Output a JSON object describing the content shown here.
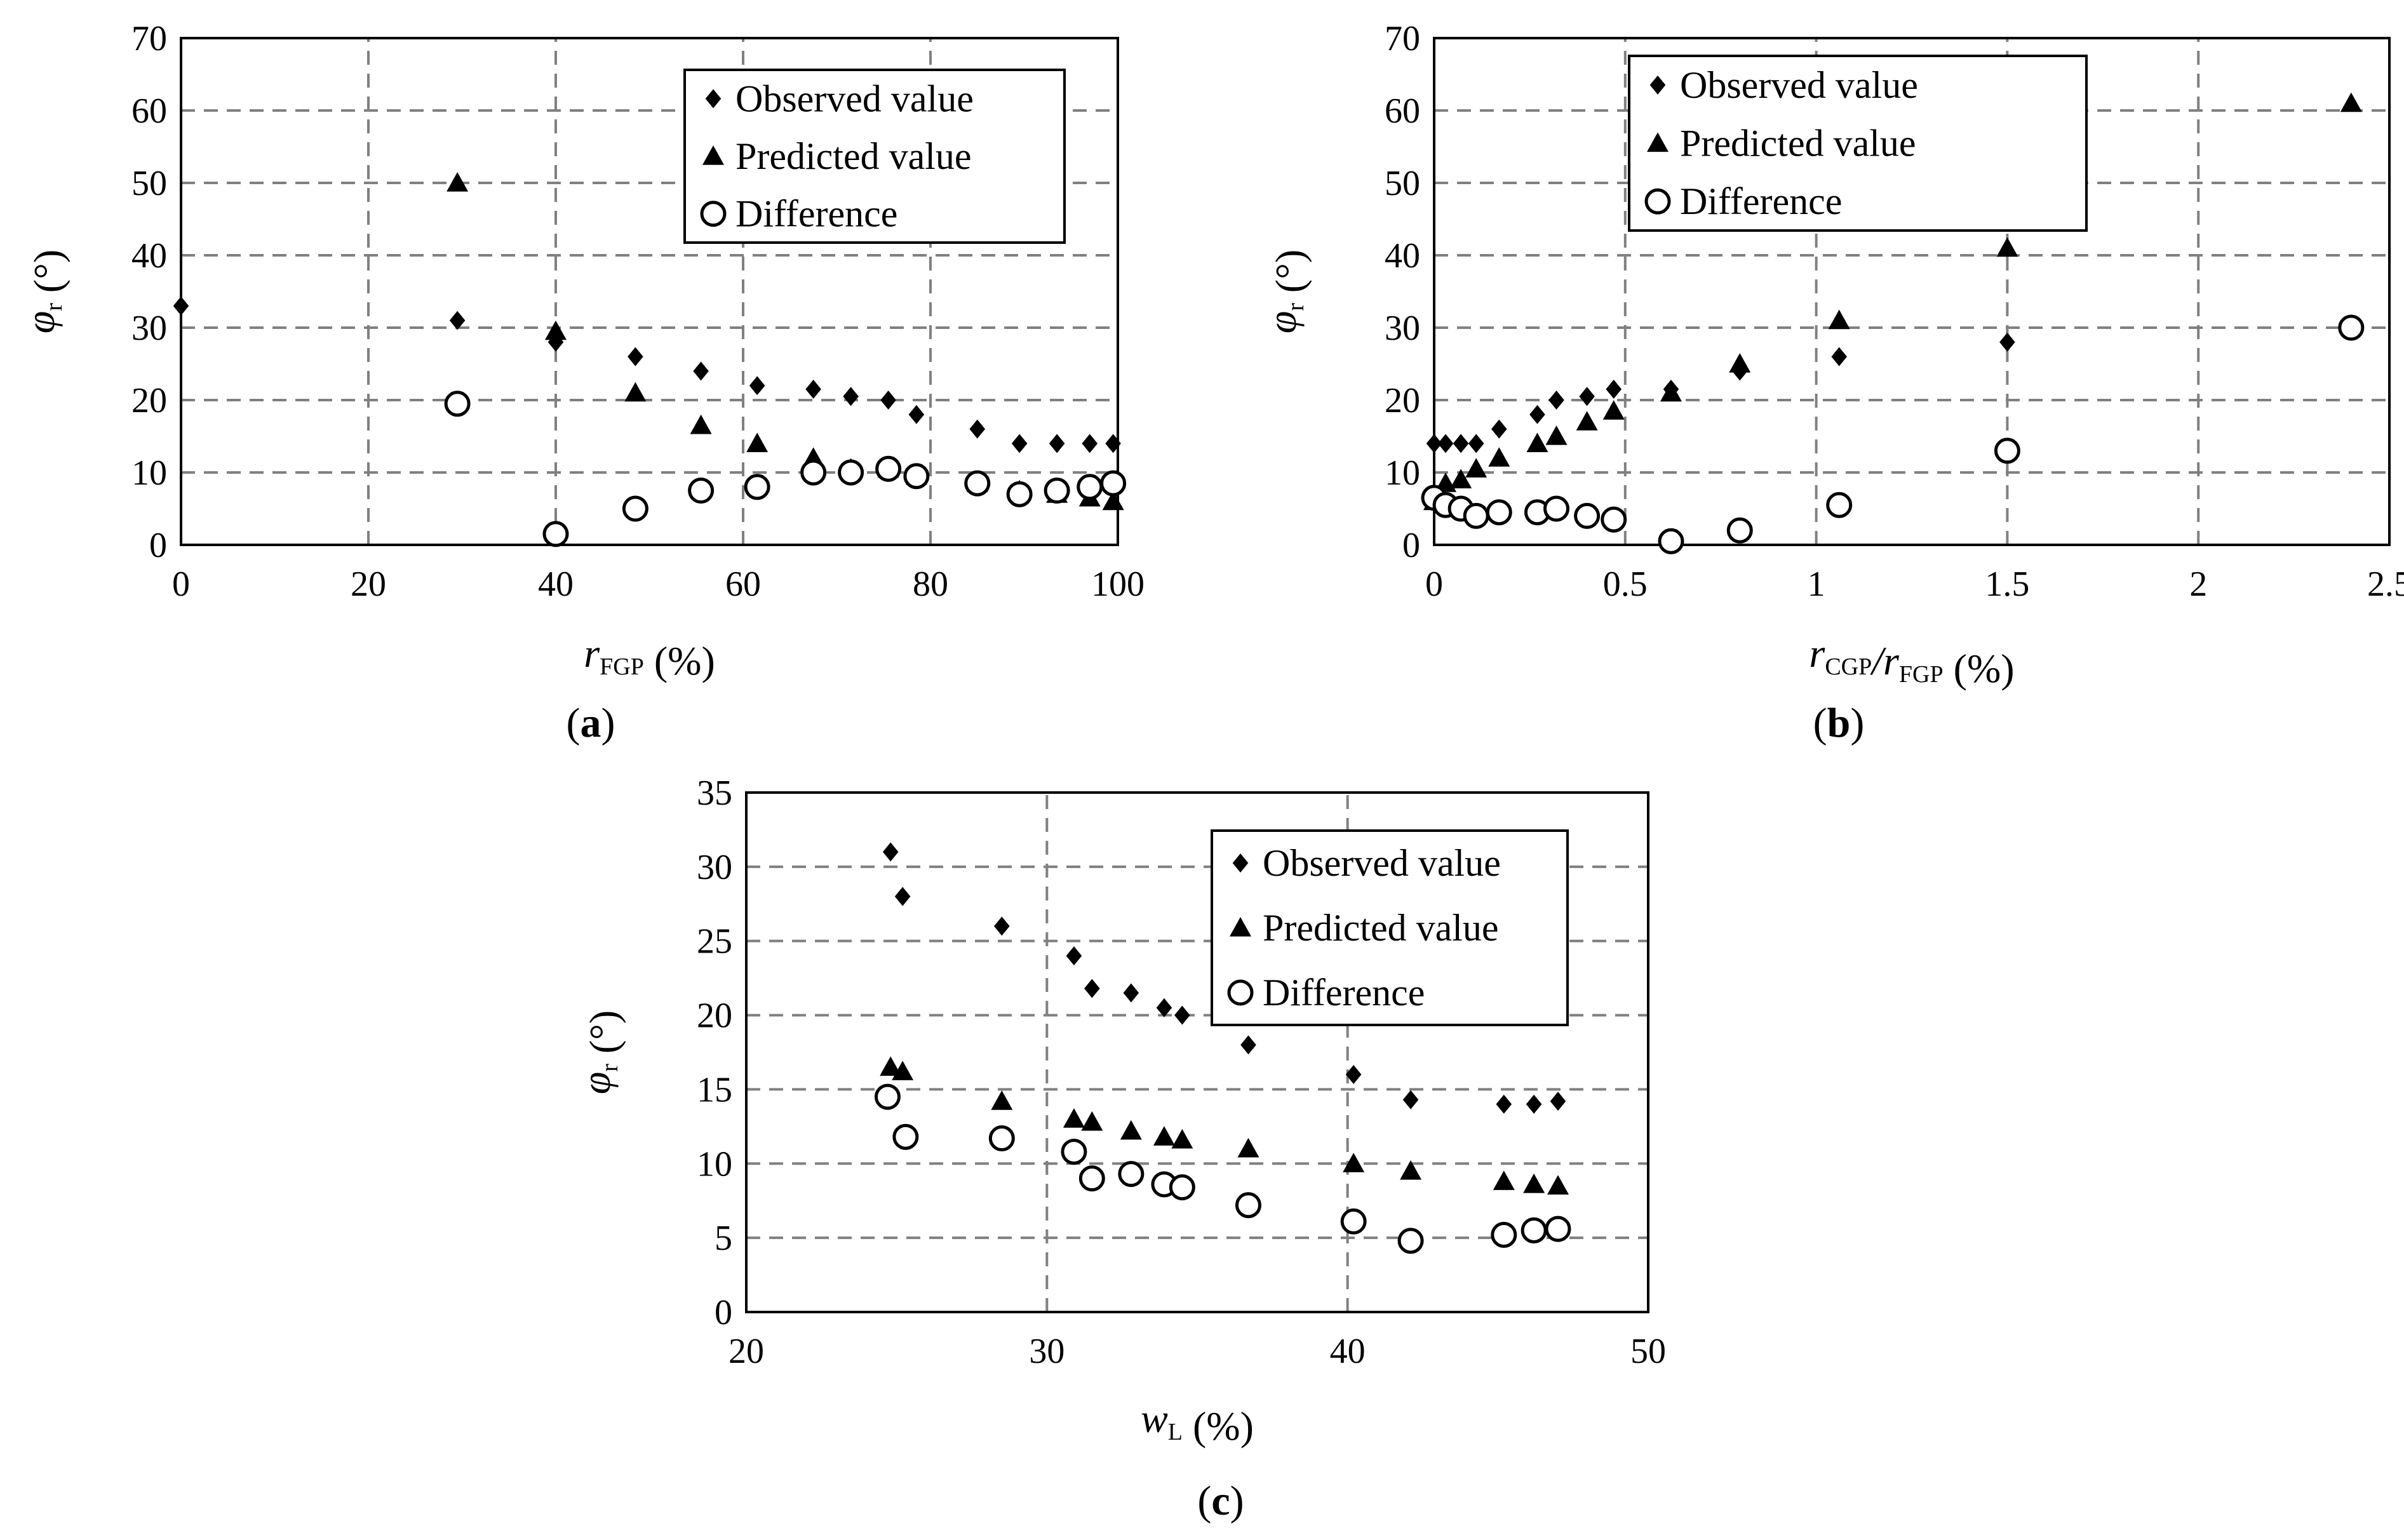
{
  "figure": {
    "captions": [
      "(a)",
      "(b)",
      "(c)"
    ]
  },
  "chart_data": [
    {
      "id": "a",
      "type": "scatter",
      "caption_letter": "a",
      "xlabel": {
        "main": "r",
        "sub": "FGP",
        "suffix": "(%)"
      },
      "ylabel": {
        "main": "φ",
        "sub": "r",
        "suffix": "(°)"
      },
      "xlim": [
        0,
        100
      ],
      "ylim": [
        0,
        70
      ],
      "xticks": [
        0,
        20,
        40,
        60,
        80,
        100
      ],
      "yticks": [
        0,
        10,
        20,
        30,
        40,
        50,
        60,
        70
      ],
      "xtick_labels": [
        "0",
        "20",
        "40",
        "60",
        "80",
        "100"
      ],
      "ytick_labels": [
        "0",
        "10",
        "20",
        "30",
        "40",
        "50",
        "60",
        "70"
      ],
      "grid": true,
      "legend_position": "top-right",
      "series": [
        {
          "name": "Observed value",
          "marker": "diamond",
          "x": [
            0,
            29.5,
            40,
            48.5,
            55.5,
            61.5,
            67.5,
            71.5,
            75.5,
            78.5,
            85,
            89.5,
            93.5,
            97,
            99.5
          ],
          "y": [
            33,
            31,
            28,
            26,
            24,
            22,
            21.5,
            20.5,
            20,
            18,
            16,
            14,
            14,
            14,
            14
          ]
        },
        {
          "name": "Predicted value",
          "marker": "triangle",
          "x": [
            29.5,
            40,
            48.5,
            55.5,
            61.5,
            67.5,
            71.5,
            75.5,
            78.5,
            85,
            89.5,
            93.5,
            97,
            99.5
          ],
          "y": [
            50,
            29.5,
            21,
            16.5,
            14,
            12,
            10.5,
            10.5,
            9.5,
            8.5,
            7.5,
            7,
            6.5,
            6
          ]
        },
        {
          "name": "Difference",
          "marker": "circle",
          "x": [
            29.5,
            40,
            48.5,
            55.5,
            61.5,
            67.5,
            71.5,
            75.5,
            78.5,
            85,
            89.5,
            93.5,
            97,
            99.5
          ],
          "y": [
            19.5,
            1.5,
            5,
            7.5,
            8,
            10,
            10,
            10.5,
            9.5,
            8.5,
            7,
            7.5,
            8,
            8.5
          ]
        }
      ]
    },
    {
      "id": "b",
      "type": "scatter",
      "caption_letter": "b",
      "xlabel": {
        "parts": [
          {
            "main": "r",
            "sub": "CGP"
          },
          {
            "main": "/r",
            "sub": "FGP"
          }
        ],
        "suffix": "(%)"
      },
      "ylabel": {
        "main": "φ",
        "sub": "r",
        "suffix": "(°)"
      },
      "xlim": [
        0,
        2.5
      ],
      "ylim": [
        0,
        70
      ],
      "xticks": [
        0,
        0.5,
        1,
        1.5,
        2,
        2.5
      ],
      "yticks": [
        0,
        10,
        20,
        30,
        40,
        50,
        60,
        70
      ],
      "xtick_labels": [
        "0",
        "0.5",
        "1",
        "1.5",
        "2",
        "2.5"
      ],
      "ytick_labels": [
        "0",
        "10",
        "20",
        "30",
        "40",
        "50",
        "60",
        "70"
      ],
      "grid": true,
      "legend_position": "top-left",
      "series": [
        {
          "name": "Observed value",
          "marker": "diamond",
          "x": [
            0,
            0.03,
            0.07,
            0.11,
            0.17,
            0.27,
            0.32,
            0.4,
            0.47,
            0.62,
            0.8,
            1.06,
            1.5
          ],
          "y": [
            14,
            14,
            14,
            14,
            16,
            18,
            20,
            20.5,
            21.5,
            21.5,
            24,
            26,
            28
          ]
        },
        {
          "name": "Predicted value",
          "marker": "triangle",
          "x": [
            0,
            0.03,
            0.07,
            0.11,
            0.17,
            0.27,
            0.32,
            0.4,
            0.47,
            0.62,
            0.8,
            1.06,
            1.5,
            2.4
          ],
          "y": [
            6,
            8.5,
            9,
            10.5,
            12,
            14,
            15,
            17,
            18.5,
            21,
            25,
            31,
            41,
            61
          ]
        },
        {
          "name": "Difference",
          "marker": "circle",
          "x": [
            0,
            0.03,
            0.07,
            0.11,
            0.17,
            0.27,
            0.32,
            0.4,
            0.47,
            0.62,
            0.8,
            1.06,
            1.5,
            2.4
          ],
          "y": [
            6.5,
            5.5,
            5,
            4,
            4.5,
            4.5,
            5,
            4,
            3.5,
            0.5,
            2,
            5.5,
            13,
            30
          ]
        }
      ]
    },
    {
      "id": "c",
      "type": "scatter",
      "caption_letter": "c",
      "xlabel": {
        "main": "w",
        "sub": "L",
        "suffix": "(%)"
      },
      "ylabel": {
        "main": "φ",
        "sub": "r",
        "suffix": "(°)"
      },
      "xlim": [
        20,
        50
      ],
      "ylim": [
        0,
        35
      ],
      "xticks": [
        20,
        30,
        40,
        50
      ],
      "yticks": [
        0,
        5,
        10,
        15,
        20,
        25,
        30,
        35
      ],
      "xtick_labels": [
        "20",
        "30",
        "40",
        "50"
      ],
      "ytick_labels": [
        "0",
        "5",
        "10",
        "15",
        "20",
        "25",
        "30",
        "35"
      ],
      "grid": true,
      "legend_position": "top-right",
      "series": [
        {
          "name": "Observed value",
          "marker": "diamond",
          "x": [
            24.8,
            25.2,
            28.5,
            30.9,
            31.5,
            32.8,
            33.9,
            34.5,
            36.7,
            40.2,
            42.1,
            45.2,
            46.2,
            47.0
          ],
          "y": [
            31,
            28,
            26,
            24,
            21.8,
            21.5,
            20.5,
            20,
            18,
            16,
            14.3,
            14,
            14,
            14.2
          ]
        },
        {
          "name": "Predicted value",
          "marker": "triangle",
          "x": [
            24.8,
            25.2,
            28.5,
            30.9,
            31.5,
            32.8,
            33.9,
            34.5,
            36.7,
            40.2,
            42.1,
            45.2,
            46.2,
            47.0
          ],
          "y": [
            16.5,
            16.2,
            14.2,
            13,
            12.8,
            12.2,
            11.8,
            11.6,
            11,
            10,
            9.5,
            8.8,
            8.6,
            8.5
          ]
        },
        {
          "name": "Difference",
          "marker": "circle",
          "x": [
            24.7,
            25.3,
            28.5,
            30.9,
            31.5,
            32.8,
            33.9,
            34.5,
            36.7,
            40.2,
            42.1,
            45.2,
            46.2,
            47.0
          ],
          "y": [
            14.5,
            11.8,
            11.7,
            10.8,
            9,
            9.3,
            8.6,
            8.4,
            7.2,
            6.1,
            4.8,
            5.2,
            5.5,
            5.6
          ]
        }
      ]
    }
  ]
}
